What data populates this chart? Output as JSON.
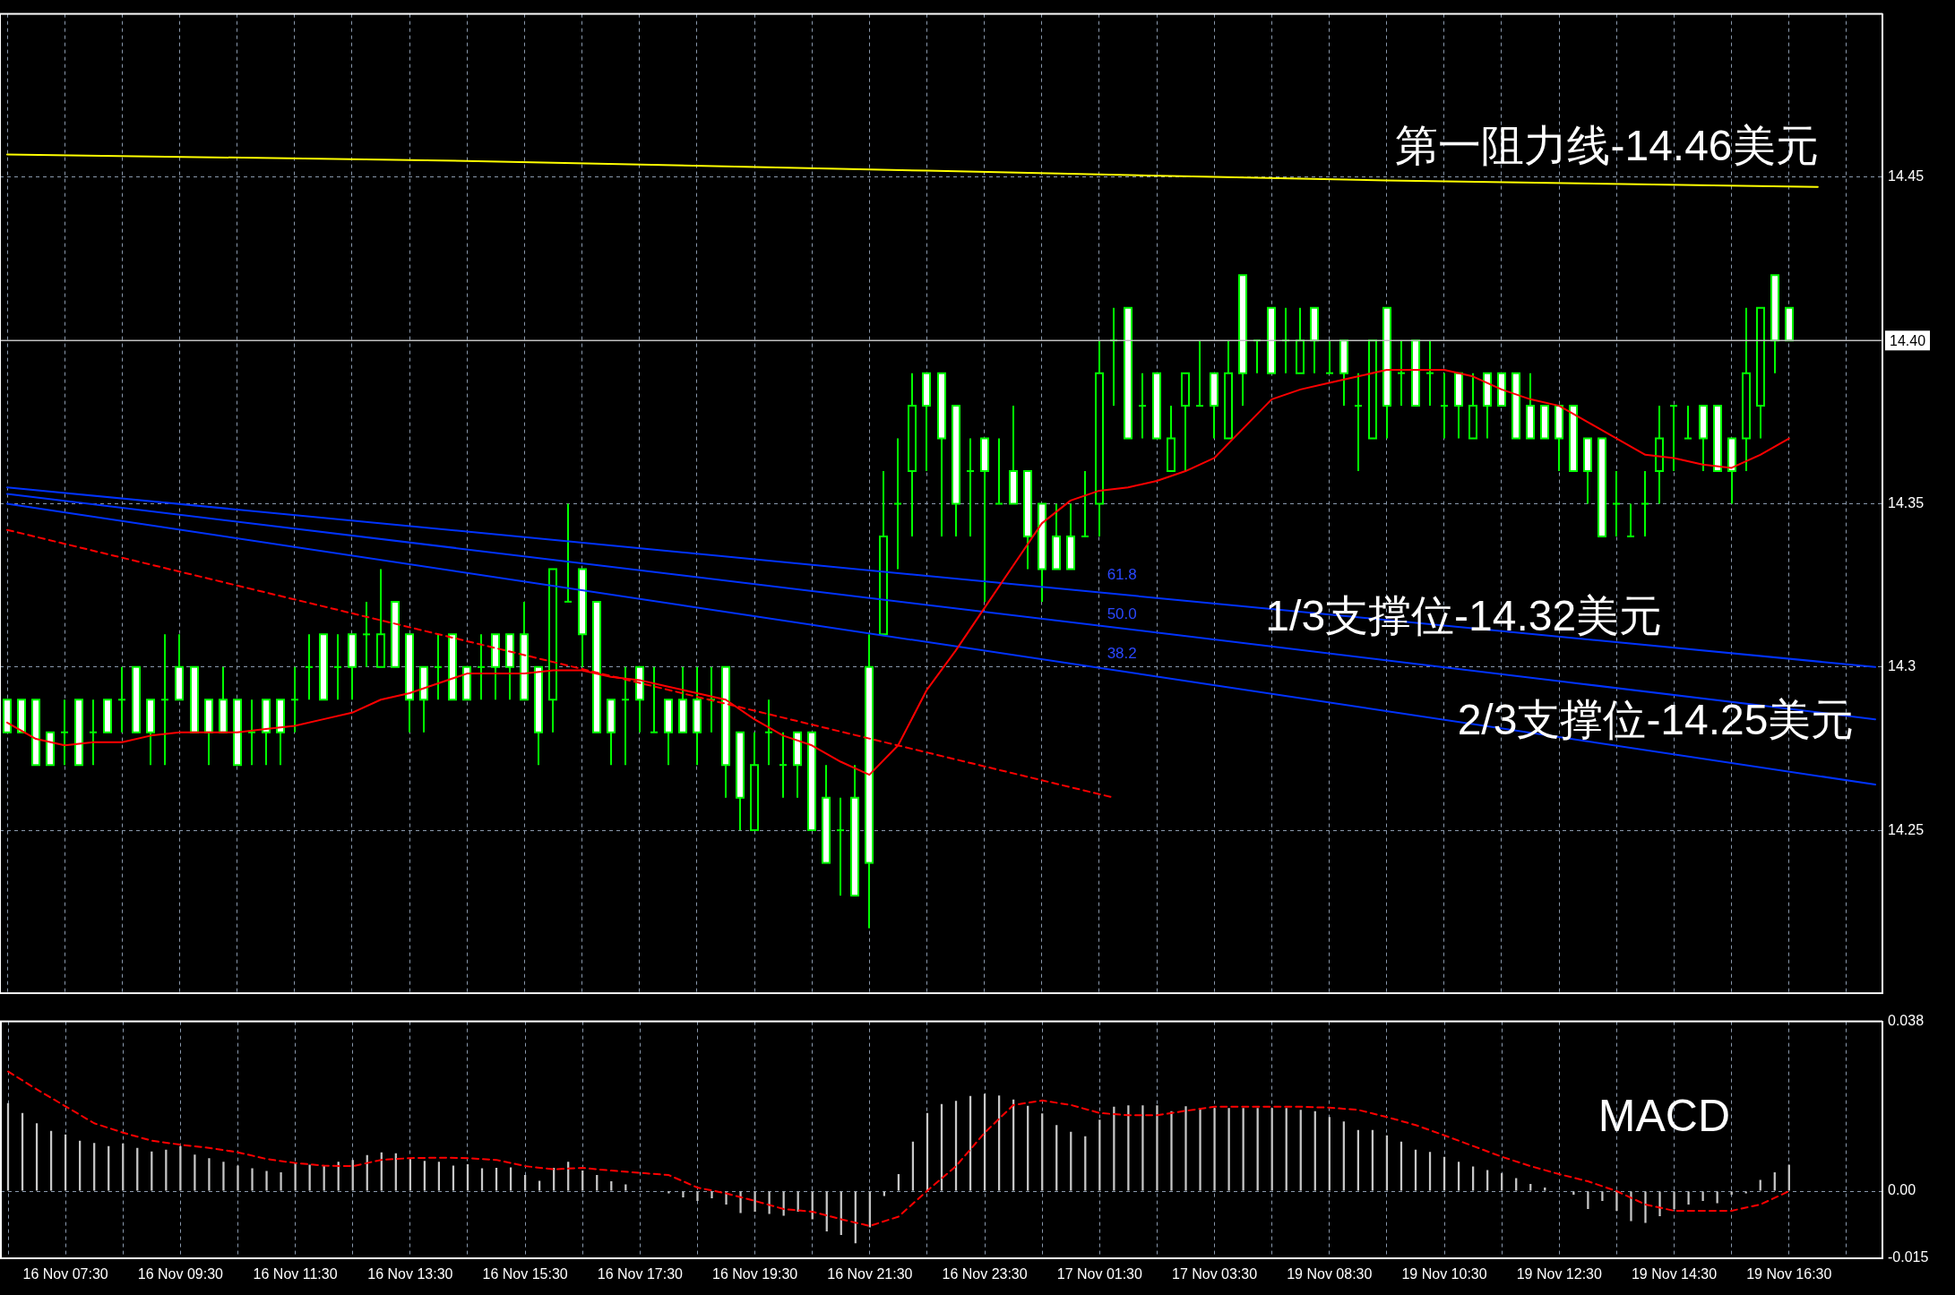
{
  "chart_data": [
    {
      "type": "candlestick",
      "categories": [
        null,
        null,
        null,
        null,
        null,
        null,
        null,
        null,
        null,
        null,
        null,
        null,
        null,
        null,
        null,
        null,
        null,
        null,
        null,
        null,
        null,
        null,
        null,
        null,
        null,
        null,
        null,
        null,
        null,
        null,
        null,
        null,
        null,
        null,
        null,
        null,
        null,
        null,
        null,
        null,
        null,
        null,
        null,
        null,
        null,
        null,
        null,
        null,
        null,
        null,
        null,
        null,
        null,
        null,
        null,
        null,
        null,
        null,
        null,
        null,
        null,
        null,
        null,
        null,
        null,
        null,
        null,
        null,
        null,
        null,
        null,
        null,
        null,
        null,
        null,
        null,
        null,
        null,
        null,
        null,
        null,
        null,
        null,
        null,
        null,
        null,
        null,
        null,
        null,
        null,
        null,
        null,
        null,
        null,
        null,
        null,
        null,
        null,
        null,
        null,
        null,
        null,
        null,
        null,
        null,
        null,
        null,
        null,
        null,
        null,
        null,
        null,
        null,
        null,
        null,
        null,
        null,
        null,
        null,
        null,
        null,
        null,
        null,
        null,
        null,
        null,
        null,
        null,
        null,
        null,
        null
      ],
      "ohlc": [
        [
          14.29,
          14.29,
          14.28,
          14.28
        ],
        [
          14.29,
          14.29,
          14.28,
          14.28
        ],
        [
          14.29,
          14.29,
          14.27,
          14.27
        ],
        [
          14.28,
          14.28,
          14.27,
          14.27
        ],
        [
          14.28,
          14.29,
          14.27,
          14.28
        ],
        [
          14.29,
          14.29,
          14.27,
          14.27
        ],
        [
          14.28,
          14.29,
          14.27,
          14.28
        ],
        [
          14.29,
          14.29,
          14.28,
          14.28
        ],
        [
          14.29,
          14.3,
          14.28,
          14.29
        ],
        [
          14.3,
          14.3,
          14.28,
          14.28
        ],
        [
          14.29,
          14.29,
          14.27,
          14.28
        ],
        [
          14.29,
          14.31,
          14.27,
          14.29
        ],
        [
          14.3,
          14.31,
          14.29,
          14.29
        ],
        [
          14.3,
          14.3,
          14.28,
          14.28
        ],
        [
          14.29,
          14.29,
          14.27,
          14.28
        ],
        [
          14.29,
          14.3,
          14.28,
          14.28
        ],
        [
          14.29,
          14.29,
          14.27,
          14.27
        ],
        [
          14.28,
          14.29,
          14.27,
          14.28
        ],
        [
          14.29,
          14.29,
          14.27,
          14.28
        ],
        [
          14.29,
          14.29,
          14.27,
          14.28
        ],
        [
          14.29,
          14.3,
          14.28,
          14.29
        ],
        [
          14.3,
          14.31,
          14.29,
          14.3
        ],
        [
          14.31,
          14.31,
          14.29,
          14.29
        ],
        [
          14.3,
          14.31,
          14.29,
          14.3
        ],
        [
          14.31,
          14.31,
          14.29,
          14.3
        ],
        [
          14.31,
          14.32,
          14.3,
          14.31
        ],
        [
          14.3,
          14.33,
          14.3,
          14.31
        ],
        [
          14.32,
          14.32,
          14.3,
          14.3
        ],
        [
          14.31,
          14.31,
          14.28,
          14.29
        ],
        [
          14.3,
          14.3,
          14.28,
          14.29
        ],
        [
          14.3,
          14.31,
          14.29,
          14.3
        ],
        [
          14.31,
          14.31,
          14.29,
          14.29
        ],
        [
          14.3,
          14.3,
          14.29,
          14.29
        ],
        [
          14.3,
          14.31,
          14.29,
          14.3
        ],
        [
          14.31,
          14.31,
          14.29,
          14.3
        ],
        [
          14.31,
          14.31,
          14.29,
          14.3
        ],
        [
          14.31,
          14.32,
          14.29,
          14.29
        ],
        [
          14.3,
          14.3,
          14.27,
          14.28
        ],
        [
          14.29,
          14.33,
          14.28,
          14.33
        ],
        [
          14.32,
          14.35,
          14.32,
          14.32
        ],
        [
          14.33,
          14.33,
          14.3,
          14.31
        ],
        [
          14.32,
          14.32,
          14.28,
          14.28
        ],
        [
          14.29,
          14.29,
          14.27,
          14.28
        ],
        [
          14.29,
          14.3,
          14.27,
          14.29
        ],
        [
          14.3,
          14.3,
          14.28,
          14.29
        ],
        [
          14.28,
          14.3,
          14.28,
          14.28
        ],
        [
          14.29,
          14.29,
          14.27,
          14.28
        ],
        [
          14.29,
          14.3,
          14.28,
          14.28
        ],
        [
          14.29,
          14.3,
          14.27,
          14.28
        ],
        [
          14.29,
          14.3,
          14.28,
          14.29
        ],
        [
          14.3,
          14.3,
          14.26,
          14.27
        ],
        [
          14.28,
          14.28,
          14.25,
          14.26
        ],
        [
          14.25,
          14.28,
          14.25,
          14.27
        ],
        [
          14.28,
          14.29,
          14.27,
          14.28
        ],
        [
          14.27,
          14.28,
          14.26,
          14.27
        ],
        [
          14.28,
          14.28,
          14.26,
          14.27
        ],
        [
          14.28,
          14.28,
          14.25,
          14.25
        ],
        [
          14.26,
          14.27,
          14.24,
          14.24
        ],
        [
          14.25,
          14.26,
          14.23,
          14.25
        ],
        [
          14.26,
          14.27,
          14.23,
          14.23
        ],
        [
          14.3,
          14.31,
          14.22,
          14.24
        ],
        [
          14.31,
          14.36,
          14.31,
          14.34
        ],
        [
          14.35,
          14.37,
          14.33,
          14.35
        ],
        [
          14.36,
          14.39,
          14.34,
          14.38
        ],
        [
          14.39,
          14.39,
          14.36,
          14.38
        ],
        [
          14.39,
          14.39,
          14.34,
          14.37
        ],
        [
          14.38,
          14.38,
          14.34,
          14.35
        ],
        [
          14.36,
          14.37,
          14.34,
          14.36
        ],
        [
          14.37,
          14.37,
          14.32,
          14.36
        ],
        [
          14.35,
          14.37,
          14.35,
          14.35
        ],
        [
          14.36,
          14.38,
          14.35,
          14.35
        ],
        [
          14.36,
          14.36,
          14.33,
          14.34
        ],
        [
          14.35,
          14.35,
          14.32,
          14.33
        ],
        [
          14.34,
          14.35,
          14.33,
          14.33
        ],
        [
          14.34,
          14.35,
          14.33,
          14.33
        ],
        [
          14.34,
          14.36,
          14.34,
          14.34
        ],
        [
          14.35,
          14.4,
          14.34,
          14.39
        ],
        [
          14.4,
          14.41,
          14.38,
          14.4
        ],
        [
          14.41,
          14.41,
          14.37,
          14.37
        ],
        [
          14.38,
          14.39,
          14.37,
          14.38
        ],
        [
          14.39,
          14.39,
          14.37,
          14.37
        ],
        [
          14.36,
          14.38,
          14.36,
          14.37
        ],
        [
          14.38,
          14.39,
          14.36,
          14.39
        ],
        [
          14.38,
          14.4,
          14.38,
          14.38
        ],
        [
          14.39,
          14.39,
          14.37,
          14.38
        ],
        [
          14.37,
          14.4,
          14.37,
          14.39
        ],
        [
          14.42,
          14.42,
          14.38,
          14.39
        ],
        [
          14.4,
          14.4,
          14.39,
          14.4
        ],
        [
          14.41,
          14.41,
          14.39,
          14.39
        ],
        [
          14.4,
          14.41,
          14.39,
          14.4
        ],
        [
          14.39,
          14.41,
          14.39,
          14.4
        ],
        [
          14.41,
          14.41,
          14.39,
          14.4
        ],
        [
          14.39,
          14.4,
          14.39,
          14.39
        ],
        [
          14.4,
          14.4,
          14.38,
          14.39
        ],
        [
          14.38,
          14.39,
          14.36,
          14.38
        ],
        [
          14.37,
          14.4,
          14.37,
          14.4
        ],
        [
          14.41,
          14.41,
          14.37,
          14.38
        ],
        [
          14.39,
          14.4,
          14.38,
          14.39
        ],
        [
          14.4,
          14.4,
          14.38,
          14.38
        ],
        [
          14.39,
          14.4,
          14.38,
          14.39
        ],
        [
          14.38,
          14.39,
          14.37,
          14.38
        ],
        [
          14.39,
          14.39,
          14.37,
          14.38
        ],
        [
          14.37,
          14.39,
          14.37,
          14.38
        ],
        [
          14.39,
          14.39,
          14.37,
          14.38
        ],
        [
          14.39,
          14.39,
          14.38,
          14.38
        ],
        [
          14.39,
          14.39,
          14.37,
          14.37
        ],
        [
          14.38,
          14.39,
          14.37,
          14.37
        ],
        [
          14.38,
          14.38,
          14.37,
          14.37
        ],
        [
          14.38,
          14.38,
          14.36,
          14.37
        ],
        [
          14.38,
          14.38,
          14.36,
          14.36
        ],
        [
          14.37,
          14.37,
          14.35,
          14.36
        ],
        [
          14.37,
          14.37,
          14.34,
          14.34
        ],
        [
          14.35,
          14.36,
          14.34,
          14.35
        ],
        [
          14.34,
          14.35,
          14.34,
          14.34
        ],
        [
          14.35,
          14.36,
          14.34,
          14.35
        ],
        [
          14.36,
          14.38,
          14.35,
          14.37
        ],
        [
          14.38,
          14.38,
          14.36,
          14.38
        ],
        [
          14.37,
          14.38,
          14.37,
          14.37
        ],
        [
          14.38,
          14.38,
          14.36,
          14.37
        ],
        [
          14.38,
          14.38,
          14.36,
          14.36
        ],
        [
          14.37,
          14.37,
          14.35,
          14.36
        ],
        [
          14.37,
          14.41,
          14.36,
          14.39
        ],
        [
          14.38,
          14.41,
          14.37,
          14.41
        ],
        [
          14.42,
          14.42,
          14.39,
          14.4
        ],
        [
          14.41,
          14.41,
          14.4,
          14.4
        ],
        null,
        null,
        null,
        null,
        null,
        null
      ],
      "color": "#00ff00",
      "colors": [
        "#ffffff",
        "#ffffff",
        "#ffffff",
        "#ffffff",
        null,
        "#ffffff",
        null,
        "#ffffff",
        null,
        "#ffffff",
        "#ffffff",
        null,
        "#ffffff",
        "#ffffff",
        "#ffffff",
        "#ffffff",
        "#ffffff",
        null,
        "#ffffff",
        "#ffffff",
        null,
        null,
        "#ffffff",
        null,
        "#ffffff",
        null,
        "#000000",
        "#ffffff",
        "#ffffff",
        "#ffffff",
        null,
        "#ffffff",
        "#ffffff",
        null,
        "#ffffff",
        "#ffffff",
        "#ffffff",
        "#ffffff",
        "#000000",
        null,
        "#ffffff",
        "#ffffff",
        "#ffffff",
        null,
        "#ffffff",
        null,
        "#ffffff",
        "#ffffff",
        "#ffffff",
        null,
        "#ffffff",
        "#ffffff",
        "#000000",
        null,
        null,
        "#ffffff",
        "#ffffff",
        "#ffffff",
        null,
        "#ffffff",
        "#ffffff",
        "#000000",
        null,
        "#000000",
        "#ffffff",
        "#ffffff",
        "#ffffff",
        null,
        "#ffffff",
        null,
        "#ffffff",
        "#ffffff",
        "#ffffff",
        "#ffffff",
        "#ffffff",
        null,
        "#000000",
        null,
        "#ffffff",
        null,
        "#ffffff",
        "#000000",
        "#000000",
        null,
        "#ffffff",
        "#000000",
        "#ffffff",
        null,
        "#ffffff",
        null,
        "#000000",
        "#ffffff",
        null,
        "#ffffff",
        null,
        "#000000",
        "#ffffff",
        null,
        "#ffffff",
        null,
        null,
        "#ffffff",
        "#000000",
        "#ffffff",
        "#ffffff",
        "#ffffff",
        "#ffffff",
        "#ffffff",
        "#ffffff",
        "#ffffff",
        "#ffffff",
        "#ffffff",
        null,
        null,
        null,
        "#000000",
        null,
        null,
        "#ffffff",
        "#ffffff",
        "#ffffff",
        "#000000",
        "#000000",
        "#ffffff",
        "#ffffff",
        null,
        null,
        null,
        null,
        null,
        null
      ],
      "series": [
        {
          "type": "line",
          "color": "#ff0000",
          "values": [
            14.283,
            null,
            14.278,
            null,
            14.276,
            null,
            14.277,
            null,
            14.277,
            null,
            14.279,
            null,
            14.28,
            null,
            14.28,
            null,
            14.28,
            null,
            14.281,
            null,
            14.282,
            null,
            14.284,
            null,
            14.286,
            null,
            14.29,
            null,
            14.292,
            null,
            14.295,
            null,
            14.298,
            null,
            14.298,
            null,
            14.298,
            null,
            14.299,
            null,
            14.299,
            null,
            14.297,
            null,
            14.296,
            null,
            14.294,
            null,
            14.292,
            null,
            14.29,
            null,
            14.284,
            null,
            14.279,
            null,
            14.276,
            null,
            14.271,
            null,
            14.267,
            null,
            14.276,
            null,
            14.293,
            null,
            14.305,
            null,
            14.318,
            null,
            14.331,
            null,
            14.344,
            null,
            14.351,
            null,
            14.354,
            null,
            14.355,
            null,
            14.357,
            null,
            14.36,
            null,
            14.364,
            null,
            14.373,
            null,
            14.382,
            null,
            14.385,
            null,
            14.387,
            null,
            14.389,
            null,
            14.391,
            null,
            14.391,
            null,
            14.391,
            null,
            14.389,
            null,
            14.385,
            null,
            14.382,
            null,
            14.38,
            null,
            14.375,
            null,
            14.37,
            null,
            14.365,
            null,
            14.364,
            null,
            14.362,
            null,
            14.361,
            null,
            14.365,
            null,
            14.37,
            null,
            null,
            null,
            null,
            null,
            null
          ]
        },
        {
          "type": "line",
          "color": "#ffff00",
          "values": [
            14.457,
            null,
            null,
            null,
            null,
            null,
            null,
            null,
            null,
            null,
            null,
            null,
            null,
            null,
            null,
            null,
            null,
            null,
            null,
            null,
            null,
            null,
            null,
            null,
            null,
            null,
            null,
            null,
            null,
            null,
            null,
            null,
            14.455,
            null,
            null,
            null,
            null,
            null,
            null,
            null,
            null,
            null,
            null,
            null,
            null,
            null,
            null,
            null,
            null,
            null,
            null,
            null,
            null,
            null,
            null,
            null,
            null,
            null,
            null,
            null,
            null,
            null,
            null,
            null,
            14.452,
            null,
            null,
            null,
            null,
            null,
            null,
            null,
            null,
            null,
            null,
            null,
            null,
            null,
            null,
            null,
            null,
            null,
            null,
            null,
            null,
            null,
            null,
            null,
            null,
            null,
            null,
            null,
            null,
            null,
            null,
            null,
            14.449,
            null,
            null,
            null,
            null,
            null,
            null,
            null,
            null,
            null,
            null,
            null,
            null,
            null,
            null,
            null,
            null,
            null,
            null,
            null,
            null,
            null,
            null,
            null,
            null,
            null,
            null,
            null,
            null,
            null,
            14.447,
            null,
            null,
            null,
            null
          ]
        },
        {
          "type": "line",
          "color": "#0033ff",
          "values": [
            14.355,
            null,
            null,
            null,
            null,
            null,
            null,
            null,
            null,
            null,
            null,
            null,
            null,
            null,
            null,
            null,
            null,
            null,
            null,
            null,
            null,
            null,
            null,
            null,
            null,
            null,
            null,
            null,
            null,
            null,
            null,
            null,
            null,
            null,
            null,
            null,
            null,
            null,
            null,
            null,
            null,
            null,
            null,
            null,
            null,
            null,
            null,
            null,
            null,
            null,
            null,
            null,
            null,
            null,
            null,
            null,
            null,
            null,
            null,
            null,
            null,
            null,
            null,
            null,
            null,
            null,
            null,
            null,
            null,
            null,
            null,
            null,
            null,
            null,
            null,
            null,
            null,
            null,
            null,
            null,
            null,
            null,
            null,
            null,
            null,
            null,
            null,
            null,
            null,
            null,
            null,
            null,
            null,
            null,
            null,
            null,
            null,
            null,
            null,
            null,
            null,
            null,
            null,
            null,
            null,
            null,
            null,
            null,
            null,
            null,
            null,
            null,
            null,
            null,
            null,
            null,
            null,
            null,
            null,
            null,
            null,
            null,
            null,
            null,
            null,
            null,
            null,
            null,
            null,
            null,
            14.3
          ]
        },
        {
          "type": "line",
          "color": "#0033ff",
          "values": [
            14.353,
            null,
            null,
            null,
            null,
            null,
            null,
            null,
            null,
            null,
            null,
            null,
            null,
            null,
            null,
            null,
            null,
            null,
            null,
            null,
            null,
            null,
            null,
            null,
            null,
            null,
            null,
            null,
            null,
            null,
            null,
            null,
            null,
            null,
            null,
            null,
            null,
            null,
            null,
            null,
            null,
            null,
            null,
            null,
            null,
            null,
            null,
            null,
            null,
            null,
            null,
            null,
            null,
            null,
            null,
            null,
            null,
            null,
            null,
            null,
            null,
            null,
            null,
            null,
            null,
            null,
            null,
            null,
            null,
            null,
            null,
            null,
            null,
            null,
            null,
            null,
            null,
            null,
            null,
            null,
            null,
            null,
            null,
            null,
            null,
            null,
            null,
            null,
            null,
            null,
            null,
            null,
            null,
            null,
            null,
            null,
            null,
            null,
            null,
            null,
            null,
            null,
            null,
            null,
            null,
            null,
            null,
            null,
            null,
            null,
            null,
            null,
            null,
            null,
            null,
            null,
            null,
            null,
            null,
            null,
            null,
            null,
            null,
            null,
            null,
            null,
            null,
            null,
            null,
            null,
            14.284
          ]
        },
        {
          "type": "line",
          "color": "#0033ff",
          "values": [
            14.35,
            null,
            null,
            null,
            null,
            null,
            null,
            null,
            null,
            null,
            null,
            null,
            null,
            null,
            null,
            null,
            null,
            null,
            null,
            null,
            null,
            null,
            null,
            null,
            null,
            null,
            null,
            null,
            null,
            null,
            null,
            null,
            null,
            null,
            null,
            null,
            null,
            null,
            null,
            null,
            null,
            null,
            null,
            null,
            null,
            null,
            null,
            null,
            null,
            null,
            null,
            null,
            null,
            null,
            null,
            null,
            null,
            null,
            null,
            null,
            null,
            null,
            null,
            null,
            null,
            null,
            null,
            null,
            null,
            null,
            null,
            null,
            null,
            null,
            null,
            null,
            null,
            null,
            null,
            null,
            null,
            null,
            null,
            null,
            null,
            null,
            null,
            null,
            null,
            null,
            null,
            null,
            null,
            null,
            null,
            null,
            null,
            null,
            null,
            null,
            null,
            null,
            null,
            null,
            null,
            null,
            null,
            null,
            null,
            null,
            null,
            null,
            null,
            null,
            null,
            null,
            null,
            null,
            null,
            null,
            null,
            null,
            null,
            null,
            null,
            null,
            null,
            null,
            null,
            null,
            14.264
          ]
        },
        {
          "type": "line",
          "color": "#ff0000",
          "line_style": "dashed",
          "values": [
            14.342,
            null,
            null,
            null,
            null,
            null,
            null,
            null,
            null,
            null,
            null,
            null,
            null,
            null,
            null,
            null,
            null,
            null,
            null,
            null,
            null,
            null,
            null,
            null,
            null,
            null,
            null,
            null,
            null,
            null,
            null,
            null,
            null,
            null,
            null,
            null,
            null,
            null,
            null,
            null,
            null,
            null,
            null,
            null,
            null,
            null,
            null,
            null,
            null,
            null,
            null,
            null,
            null,
            null,
            null,
            null,
            null,
            null,
            null,
            null,
            null,
            null,
            null,
            null,
            null,
            null,
            null,
            null,
            null,
            null,
            null,
            null,
            null,
            null,
            null,
            null,
            null,
            14.26,
            null,
            null,
            null,
            null,
            null,
            null,
            null,
            null,
            null,
            null,
            null,
            null,
            null,
            null,
            null,
            null,
            null,
            null,
            null,
            null,
            null,
            null,
            null,
            null,
            null,
            null,
            null,
            null,
            null,
            null,
            null,
            null,
            null,
            null,
            null,
            null,
            null,
            null,
            null,
            null,
            null,
            null,
            null,
            null,
            null,
            null,
            null,
            null,
            null,
            null,
            null,
            null,
            null
          ]
        }
      ],
      "ylim": [
        14.2,
        14.5
      ],
      "yticks": [
        14.25,
        14.3,
        14.35,
        14.45
      ],
      "tick_labels": "y",
      "grid": true,
      "ref_lines": [
        {
          "axis": "y",
          "value": 14.4,
          "label": "14.40",
          "color": "#c0c0c0"
        }
      ],
      "annotations": [
        "第一阻力线-14.46美元",
        "61.8",
        "50.0",
        "1/3支撑位-14.32美元",
        "38.2",
        "2/3支撑位-14.25美元"
      ]
    },
    {
      "type": "bar",
      "categories": [
        null,
        null,
        null,
        null,
        "16 Nov 07:30",
        null,
        null,
        null,
        null,
        null,
        null,
        null,
        "16 Nov 09:30",
        null,
        null,
        null,
        null,
        null,
        null,
        null,
        "16 Nov 11:30",
        null,
        null,
        null,
        null,
        null,
        null,
        null,
        "16 Nov 13:30",
        null,
        null,
        null,
        null,
        null,
        null,
        null,
        "16 Nov 15:30",
        null,
        null,
        null,
        null,
        null,
        null,
        null,
        "16 Nov 17:30",
        null,
        null,
        null,
        null,
        null,
        null,
        null,
        "16 Nov 19:30",
        null,
        null,
        null,
        null,
        null,
        null,
        null,
        "16 Nov 21:30",
        null,
        null,
        null,
        null,
        null,
        null,
        null,
        "16 Nov 23:30",
        null,
        null,
        null,
        null,
        null,
        null,
        null,
        "17 Nov 01:30",
        null,
        null,
        null,
        null,
        null,
        null,
        null,
        "17 Nov 03:30",
        null,
        null,
        null,
        null,
        null,
        null,
        null,
        "19 Nov 08:30",
        null,
        null,
        null,
        null,
        null,
        null,
        null,
        "19 Nov 10:30",
        null,
        null,
        null,
        null,
        null,
        null,
        null,
        "19 Nov 12:30",
        null,
        null,
        null,
        null,
        null,
        null,
        null,
        "19 Nov 14:30",
        null,
        null,
        null,
        null,
        null,
        null,
        null,
        "19 Nov 16:30",
        null,
        null,
        null,
        null,
        null,
        null
      ],
      "series": [
        {
          "type": "bar",
          "color": "#c8c8c8",
          "values": [
            0.0197,
            0.0175,
            0.0152,
            0.0135,
            0.0127,
            0.0113,
            0.0108,
            0.0101,
            0.0107,
            0.0097,
            0.0089,
            0.0093,
            0.0101,
            0.0082,
            0.0074,
            0.0066,
            0.0057,
            0.0051,
            0.0045,
            0.0042,
            0.0063,
            0.0059,
            0.0056,
            0.0066,
            0.007,
            0.0081,
            0.0087,
            0.0085,
            0.0072,
            0.0068,
            0.0066,
            0.0057,
            0.006,
            0.0051,
            0.0052,
            0.0053,
            0.0036,
            0.0023,
            0.0052,
            0.0066,
            0.0046,
            0.0036,
            0.0022,
            0.0015,
            0,
            0,
            -0.0005,
            -0.0014,
            -0.0022,
            -0.0016,
            -0.003,
            -0.0049,
            -0.0046,
            -0.0051,
            -0.0055,
            -0.0046,
            -0.0063,
            -0.009,
            -0.0098,
            -0.0117,
            -0.0081,
            -0.0011,
            0.0038,
            0.0111,
            0.0175,
            0.0195,
            0.0202,
            0.0213,
            0.0218,
            0.0214,
            0.0205,
            0.0191,
            0.0174,
            0.0148,
            0.0133,
            0.0123,
            0.016,
            0.0189,
            0.0192,
            0.0192,
            0.0192,
            0.0179,
            0.019,
            0.0186,
            0.0186,
            0.0186,
            0.0186,
            0.0186,
            0.0186,
            0.0186,
            0.0182,
            0.0179,
            0.0166,
            0.0156,
            0.0137,
            0.0137,
            0.0125,
            0.0111,
            0.0093,
            0.0088,
            0.0077,
            0.0066,
            0.0055,
            0.0047,
            0.004,
            0.0029,
            0.0016,
            0.0008,
            0,
            -0.0008,
            -0.004,
            -0.0022,
            -0.0044,
            -0.0067,
            -0.0071,
            -0.0056,
            -0.004,
            -0.003,
            -0.0022,
            -0.0027,
            -0.0008,
            -0.0005,
            0.0025,
            0.0042,
            0.0059,
            null,
            null,
            null,
            null,
            null,
            null
          ]
        },
        {
          "type": "line",
          "color": "#ff0000",
          "line_style": "dashed",
          "values": [
            0.0268,
            null,
            0.0228,
            null,
            0.019,
            null,
            0.0152,
            null,
            0.0131,
            null,
            0.0113,
            null,
            0.0104,
            null,
            0.0097,
            null,
            0.0087,
            null,
            0.0072,
            null,
            0.0063,
            null,
            0.0057,
            null,
            0.0056,
            null,
            0.007,
            null,
            0.0074,
            null,
            0.0075,
            null,
            0.0074,
            null,
            0.007,
            null,
            0.0056,
            null,
            0.0049,
            null,
            0.0052,
            null,
            0.0046,
            null,
            0.0041,
            null,
            0.0036,
            null,
            0.0008,
            null,
            -0.0005,
            null,
            -0.0022,
            null,
            -0.004,
            null,
            -0.0046,
            null,
            -0.0063,
            null,
            -0.0078,
            null,
            -0.0057,
            null,
            0.0001,
            null,
            0.0056,
            null,
            0.0131,
            null,
            0.0193,
            null,
            0.0203,
            null,
            0.0193,
            null,
            0.0175,
            null,
            0.017,
            null,
            0.017,
            null,
            0.018,
            null,
            0.0189,
            null,
            0.0189,
            null,
            0.0189,
            null,
            0.0189,
            null,
            0.0187,
            null,
            0.0182,
            null,
            0.0166,
            null,
            0.0148,
            null,
            0.0125,
            null,
            0.0101,
            null,
            0.0077,
            null,
            0.0056,
            null,
            0.0038,
            null,
            0.0022,
            null,
            0,
            null,
            -0.003,
            null,
            -0.0044,
            null,
            -0.0044,
            null,
            -0.0044,
            null,
            -0.003,
            null,
            0,
            null,
            null,
            null,
            null,
            null,
            null
          ]
        }
      ],
      "ylim": [
        -0.015,
        0.038
      ],
      "yticks": [
        -0.015,
        {
          "value": 0,
          "label": "0.00"
        },
        0.038
      ],
      "grid": true,
      "annotations": [
        "MACD"
      ]
    }
  ]
}
